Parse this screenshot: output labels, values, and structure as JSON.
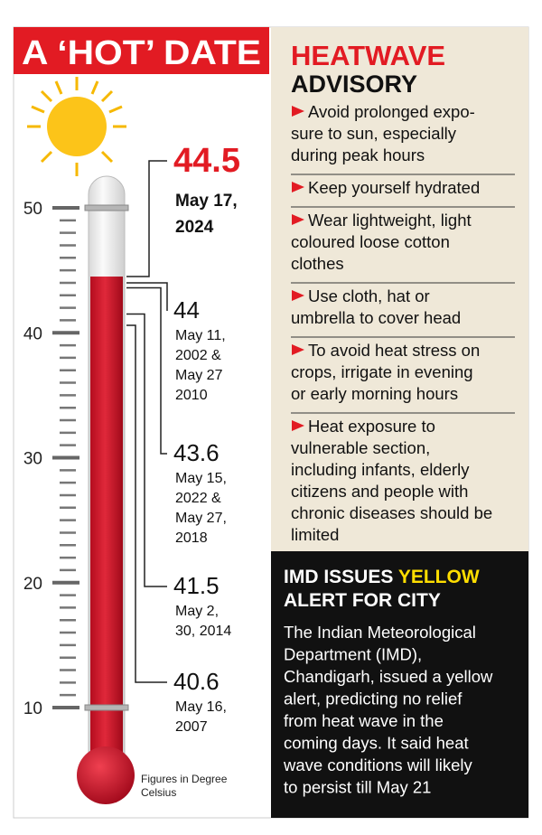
{
  "title": "A ‘HOT’ DATE",
  "scale": {
    "ylim": [
      10,
      50
    ],
    "yticks": [
      10,
      20,
      30,
      40,
      50
    ]
  },
  "records": [
    {
      "value": "44.5",
      "date_lines": [
        "May 17,",
        "2024"
      ]
    },
    {
      "value": "44",
      "date_lines": [
        "May 11,",
        "2002 &",
        "May 27",
        "2010"
      ]
    },
    {
      "value": "43.6",
      "date_lines": [
        "May 15,",
        "2022 &",
        "May 27,",
        "2018"
      ]
    },
    {
      "value": "41.5",
      "date_lines": [
        "May 2,",
        "30, 2014"
      ]
    },
    {
      "value": "40.6",
      "date_lines": [
        "May 16,",
        "2007"
      ]
    }
  ],
  "footnote_lines": [
    "Figures in Degree",
    "Celsius"
  ],
  "advisory": {
    "title_lines": [
      "HEATWAVE",
      "ADVISORY"
    ],
    "items": [
      [
        "Avoid prolonged expo-",
        "sure to sun, especially",
        "during peak hours"
      ],
      [
        "Keep yourself hydrated"
      ],
      [
        "Wear lightweight, light",
        "coloured loose cotton",
        "clothes"
      ],
      [
        "Use cloth, hat or",
        "umbrella to cover head"
      ],
      [
        "To avoid heat stress on",
        "crops, irrigate in evening",
        "or early morning hours"
      ],
      [
        "Heat exposure to",
        "vulnerable section,",
        "including infants, elderly",
        "citizens and people with",
        "chronic diseases should be",
        "limited"
      ]
    ]
  },
  "alert": {
    "title_before": "IMD ISSUES",
    "title_highlight": "YELLOW",
    "title_after": "ALERT FOR CITY",
    "body_lines": [
      "The Indian Meteorological",
      "Department (IMD),",
      "Chandigarh, issued a yellow",
      "alert, predicting no relief",
      "from heat wave in the",
      "coming days. It said heat",
      "wave conditions will likely",
      "to persist till May 21"
    ]
  }
}
